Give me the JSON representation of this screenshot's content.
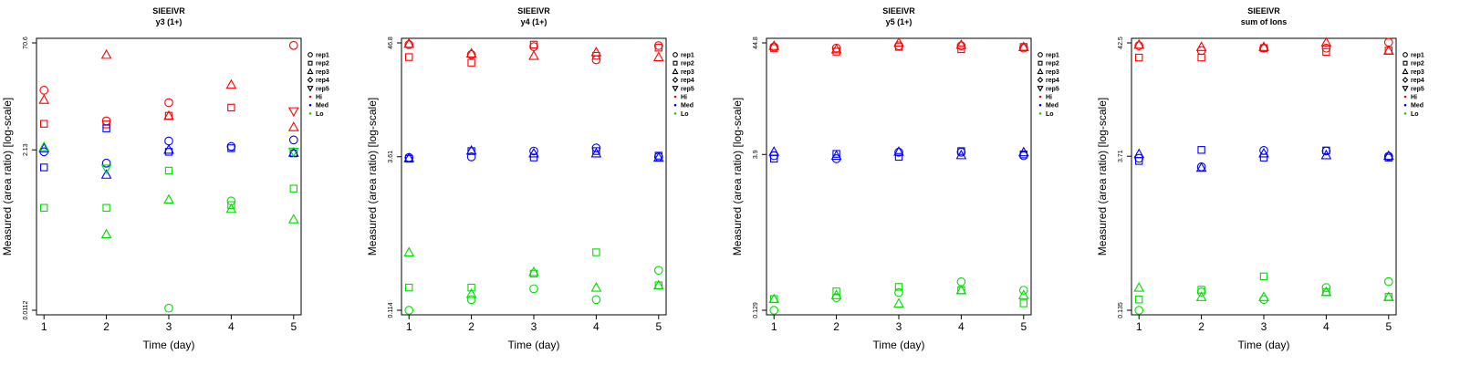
{
  "colors": {
    "Hi": "#ff0000",
    "Med": "#0000ff",
    "Lo": "#00dd00"
  },
  "legend": [
    {
      "label": "rep1",
      "marker": "circle"
    },
    {
      "label": "rep2",
      "marker": "square"
    },
    {
      "label": "rep3",
      "marker": "triangle-up"
    },
    {
      "label": "rep4",
      "marker": "diamond"
    },
    {
      "label": "rep5",
      "marker": "triangle-down"
    },
    {
      "label": "Hi",
      "marker": "dot",
      "group": "Hi"
    },
    {
      "label": "Med",
      "marker": "dot",
      "group": "Med"
    },
    {
      "label": "Lo",
      "marker": "dot",
      "group": "Lo"
    }
  ],
  "chart_data": [
    {
      "type": "scatter",
      "title": "SIEEIVR",
      "subtitle": "y3 (1+)",
      "xlabel": "Time (day)",
      "ylabel": "Measured (area ratio) [log-scale]",
      "xticks": [
        1,
        2,
        3,
        4,
        5
      ],
      "yticks": [
        0.0112,
        2.13,
        70.6
      ],
      "ylim": [
        0.0112,
        70.6
      ],
      "ylog": true,
      "legend_position": "right",
      "series": [
        {
          "name": "rep1",
          "group": "Hi",
          "x": [
            1,
            2,
            3,
            4,
            5
          ],
          "y": [
            15,
            5.5,
            10,
            null,
            65
          ]
        },
        {
          "name": "rep2",
          "group": "Hi",
          "x": [
            1,
            2,
            3,
            4,
            5
          ],
          "y": [
            5,
            4.9,
            6.5,
            8.5,
            null
          ]
        },
        {
          "name": "rep3",
          "group": "Hi",
          "x": [
            1,
            2,
            3,
            4,
            5
          ],
          "y": [
            11,
            48,
            6.5,
            18,
            4.5
          ]
        },
        {
          "name": "rep5",
          "group": "Hi",
          "x": [
            5
          ],
          "y": [
            7.5
          ]
        },
        {
          "name": "rep1",
          "group": "Med",
          "x": [
            1,
            2,
            3,
            4,
            5
          ],
          "y": [
            2,
            1.38,
            2.85,
            2.38,
            2.95
          ]
        },
        {
          "name": "rep2",
          "group": "Med",
          "x": [
            1,
            2,
            3,
            4,
            5
          ],
          "y": [
            1.2,
            4.3,
            2.0,
            2.25,
            1.9
          ]
        },
        {
          "name": "rep3",
          "group": "Med",
          "x": [
            1,
            2,
            3,
            4,
            5
          ],
          "y": [
            2.25,
            0.95,
            2.15,
            null,
            1.95
          ]
        },
        {
          "name": "rep1",
          "group": "Lo",
          "x": [
            3,
            4
          ],
          "y": [
            0.012,
            0.4
          ]
        },
        {
          "name": "rep2",
          "group": "Lo",
          "x": [
            1,
            2,
            3,
            4,
            5
          ],
          "y": [
            0.32,
            0.32,
            1.08,
            0.35,
            0.6
          ]
        },
        {
          "name": "rep3",
          "group": "Lo",
          "x": [
            1,
            2,
            3,
            4,
            5
          ],
          "y": [
            2.35,
            0.135,
            0.42,
            0.31,
            0.22
          ]
        },
        {
          "name": "rep5",
          "group": "Lo",
          "x": [
            2,
            5
          ],
          "y": [
            1.15,
            2.0
          ]
        }
      ]
    },
    {
      "type": "scatter",
      "title": "SIEEIVR",
      "subtitle": "y4 (1+)",
      "xlabel": "Time (day)",
      "ylabel": "Measured (area ratio) [log-scale]",
      "xticks": [
        1,
        2,
        3,
        4,
        5
      ],
      "yticks": [
        0.114,
        3.61,
        46.8
      ],
      "ylim": [
        0.114,
        46.8
      ],
      "ylog": true,
      "legend_position": "right",
      "series": [
        {
          "name": "rep1",
          "group": "Hi",
          "x": [
            1,
            2,
            3,
            4,
            5
          ],
          "y": [
            45,
            36,
            43,
            32,
            44
          ]
        },
        {
          "name": "rep2",
          "group": "Hi",
          "x": [
            1,
            2,
            3,
            4,
            5
          ],
          "y": [
            34,
            30,
            45,
            35,
            42
          ]
        },
        {
          "name": "rep3",
          "group": "Hi",
          "x": [
            1,
            2,
            3,
            4,
            5
          ],
          "y": [
            46,
            37,
            35,
            38,
            34
          ]
        },
        {
          "name": "rep1",
          "group": "Med",
          "x": [
            1,
            2,
            3,
            4,
            5
          ],
          "y": [
            3.55,
            3.6,
            4.1,
            4.4,
            3.6
          ]
        },
        {
          "name": "rep2",
          "group": "Med",
          "x": [
            1,
            2,
            3,
            4,
            5
          ],
          "y": [
            3.45,
            4.1,
            3.55,
            4.1,
            3.7
          ]
        },
        {
          "name": "rep3",
          "group": "Med",
          "x": [
            1,
            2,
            3,
            4,
            5
          ],
          "y": [
            3.5,
            4.15,
            3.9,
            3.9,
            3.55
          ]
        },
        {
          "name": "rep1",
          "group": "Lo",
          "x": [
            1,
            2,
            3,
            4,
            5
          ],
          "y": [
            0.114,
            0.145,
            0.185,
            0.145,
            0.28
          ]
        },
        {
          "name": "rep2",
          "group": "Lo",
          "x": [
            1,
            2,
            3,
            4,
            5
          ],
          "y": [
            0.19,
            0.19,
            0.26,
            0.42,
            0.2
          ]
        },
        {
          "name": "rep3",
          "group": "Lo",
          "x": [
            1,
            2,
            3,
            4,
            5
          ],
          "y": [
            0.42,
            0.165,
            0.27,
            0.19,
            0.2
          ]
        }
      ]
    },
    {
      "type": "scatter",
      "title": "SIEEIVR",
      "subtitle": "y5 (1+)",
      "xlabel": "Time (day)",
      "ylabel": "Measured (area ratio) [log-scale]",
      "xticks": [
        1,
        2,
        3,
        4,
        5
      ],
      "yticks": [
        0.129,
        3.9,
        44.8
      ],
      "ylim": [
        0.129,
        44.8
      ],
      "ylog": true,
      "legend_position": "right",
      "series": [
        {
          "name": "rep1",
          "group": "Hi",
          "x": [
            1,
            2,
            3,
            4,
            5
          ],
          "y": [
            41,
            40,
            42,
            42,
            40
          ]
        },
        {
          "name": "rep2",
          "group": "Hi",
          "x": [
            1,
            2,
            3,
            4,
            5
          ],
          "y": [
            40,
            37,
            41,
            39,
            41
          ]
        },
        {
          "name": "rep3",
          "group": "Hi",
          "x": [
            1,
            2,
            3,
            4,
            5
          ],
          "y": [
            42,
            39,
            45,
            43,
            41
          ]
        },
        {
          "name": "rep1",
          "group": "Med",
          "x": [
            1,
            2,
            3,
            4,
            5
          ],
          "y": [
            3.8,
            3.55,
            4.1,
            4.1,
            3.8
          ]
        },
        {
          "name": "rep2",
          "group": "Med",
          "x": [
            1,
            2,
            3,
            4,
            5
          ],
          "y": [
            3.55,
            3.95,
            3.7,
            4.2,
            3.9
          ]
        },
        {
          "name": "rep3",
          "group": "Med",
          "x": [
            1,
            2,
            3,
            4,
            5
          ],
          "y": [
            4.15,
            3.8,
            4.15,
            3.85,
            4.1
          ]
        },
        {
          "name": "rep1",
          "group": "Lo",
          "x": [
            1,
            2,
            3,
            4,
            5
          ],
          "y": [
            0.129,
            0.17,
            0.19,
            0.24,
            0.2
          ]
        },
        {
          "name": "rep2",
          "group": "Lo",
          "x": [
            1,
            2,
            3,
            4,
            5
          ],
          "y": [
            0.165,
            0.195,
            0.215,
            0.2,
            0.15
          ]
        },
        {
          "name": "rep3",
          "group": "Lo",
          "x": [
            1,
            2,
            3,
            4,
            5
          ],
          "y": [
            0.165,
            0.18,
            0.15,
            0.2,
            0.18
          ]
        }
      ]
    },
    {
      "type": "scatter",
      "title": "SIEEIVR",
      "subtitle": "sum of Ions",
      "xlabel": "Time (day)",
      "ylabel": "Measured (area ratio) [log-scale]",
      "xticks": [
        1,
        2,
        3,
        4,
        5
      ],
      "yticks": [
        0.135,
        3.71,
        42.5
      ],
      "ylim": [
        0.135,
        42.5
      ],
      "ylog": true,
      "legend_position": "right",
      "series": [
        {
          "name": "rep1",
          "group": "Hi",
          "x": [
            1,
            2,
            3,
            4,
            5
          ],
          "y": [
            40,
            36,
            38,
            38,
            43
          ]
        },
        {
          "name": "rep2",
          "group": "Hi",
          "x": [
            1,
            2,
            3,
            4,
            5
          ],
          "y": [
            31,
            31,
            38,
            35,
            36
          ]
        },
        {
          "name": "rep3",
          "group": "Hi",
          "x": [
            1,
            2,
            3,
            4,
            5
          ],
          "y": [
            41,
            39,
            39,
            43,
            36
          ]
        },
        {
          "name": "rep1",
          "group": "Med",
          "x": [
            1,
            2,
            3,
            4,
            5
          ],
          "y": [
            3.55,
            2.95,
            4.2,
            4.15,
            3.7
          ]
        },
        {
          "name": "rep2",
          "group": "Med",
          "x": [
            1,
            2,
            3,
            4,
            5
          ],
          "y": [
            3.35,
            4.25,
            3.6,
            4.2,
            3.6
          ]
        },
        {
          "name": "rep3",
          "group": "Med",
          "x": [
            1,
            2,
            3,
            4,
            5
          ],
          "y": [
            3.9,
            2.9,
            3.95,
            3.8,
            3.75
          ]
        },
        {
          "name": "rep1",
          "group": "Lo",
          "x": [
            1,
            2,
            3,
            4,
            5
          ],
          "y": [
            0.135,
            0.2,
            0.17,
            0.22,
            0.25
          ]
        },
        {
          "name": "rep2",
          "group": "Lo",
          "x": [
            1,
            2,
            3,
            4,
            5
          ],
          "y": [
            0.17,
            0.21,
            0.28,
            0.2,
            0.18
          ]
        },
        {
          "name": "rep3",
          "group": "Lo",
          "x": [
            1,
            2,
            3,
            4,
            5
          ],
          "y": [
            0.22,
            0.18,
            0.18,
            0.2,
            0.18
          ]
        }
      ]
    }
  ]
}
